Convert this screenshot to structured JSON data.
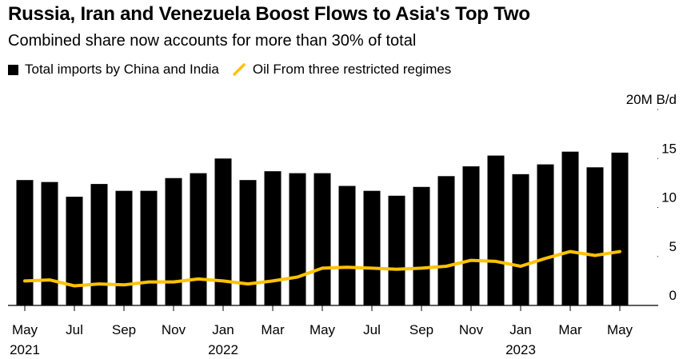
{
  "title": "Russia, Iran and Venezuela Boost Flows to Asia's Top Two",
  "subtitle": "Combined share now accounts for more than 30% of total",
  "legend": {
    "bars_label": "Total imports by China and India",
    "line_label": "Oil From three restricted regimes",
    "bar_color": "#000000",
    "line_color": "#FFC200"
  },
  "chart_data": {
    "type": "bar",
    "title": "Russia, Iran and Venezuela Boost Flows to Asia's Top Two",
    "ylabel": "M B/d",
    "ylim": [
      0,
      20
    ],
    "yticks": [
      {
        "value": 0,
        "label": "0"
      },
      {
        "value": 5,
        "label": "5"
      },
      {
        "value": 10,
        "label": "10"
      },
      {
        "value": 15,
        "label": "15"
      },
      {
        "value": 20,
        "label": "20M B/d"
      }
    ],
    "months": [
      "May 2021",
      "Jun 2021",
      "Jul 2021",
      "Aug 2021",
      "Sep 2021",
      "Oct 2021",
      "Nov 2021",
      "Dec 2021",
      "Jan 2022",
      "Feb 2022",
      "Mar 2022",
      "Apr 2022",
      "May 2022",
      "Jun 2022",
      "Jul 2022",
      "Aug 2022",
      "Sep 2022",
      "Oct 2022",
      "Nov 2022",
      "Dec 2022",
      "Jan 2023",
      "Feb 2023",
      "Mar 2023",
      "Apr 2023",
      "May 2023"
    ],
    "xticks": [
      {
        "index": 0,
        "month": "May",
        "year": "2021"
      },
      {
        "index": 2,
        "month": "Jul",
        "year": ""
      },
      {
        "index": 4,
        "month": "Sep",
        "year": ""
      },
      {
        "index": 6,
        "month": "Nov",
        "year": ""
      },
      {
        "index": 8,
        "month": "Jan",
        "year": "2022"
      },
      {
        "index": 10,
        "month": "Mar",
        "year": ""
      },
      {
        "index": 12,
        "month": "May",
        "year": ""
      },
      {
        "index": 14,
        "month": "Jul",
        "year": ""
      },
      {
        "index": 16,
        "month": "Sep",
        "year": ""
      },
      {
        "index": 18,
        "month": "Nov",
        "year": ""
      },
      {
        "index": 20,
        "month": "Jan",
        "year": "2023"
      },
      {
        "index": 22,
        "month": "Mar",
        "year": ""
      },
      {
        "index": 24,
        "month": "May",
        "year": ""
      }
    ],
    "series": [
      {
        "name": "Total imports by China and India",
        "type": "bar",
        "values": [
          12.8,
          12.6,
          11.1,
          12.4,
          11.7,
          11.7,
          13.0,
          13.5,
          15.0,
          12.8,
          13.7,
          13.5,
          13.5,
          12.2,
          11.7,
          11.2,
          12.1,
          13.2,
          14.2,
          15.3,
          13.4,
          14.4,
          15.7,
          14.1,
          15.6
        ]
      },
      {
        "name": "Oil From three restricted regimes",
        "type": "line",
        "values": [
          2.5,
          2.6,
          2.0,
          2.2,
          2.1,
          2.4,
          2.4,
          2.7,
          2.5,
          2.2,
          2.5,
          2.9,
          3.8,
          3.9,
          3.8,
          3.7,
          3.8,
          4.0,
          4.6,
          4.5,
          4.0,
          4.8,
          5.5,
          5.1,
          5.5
        ]
      }
    ]
  }
}
